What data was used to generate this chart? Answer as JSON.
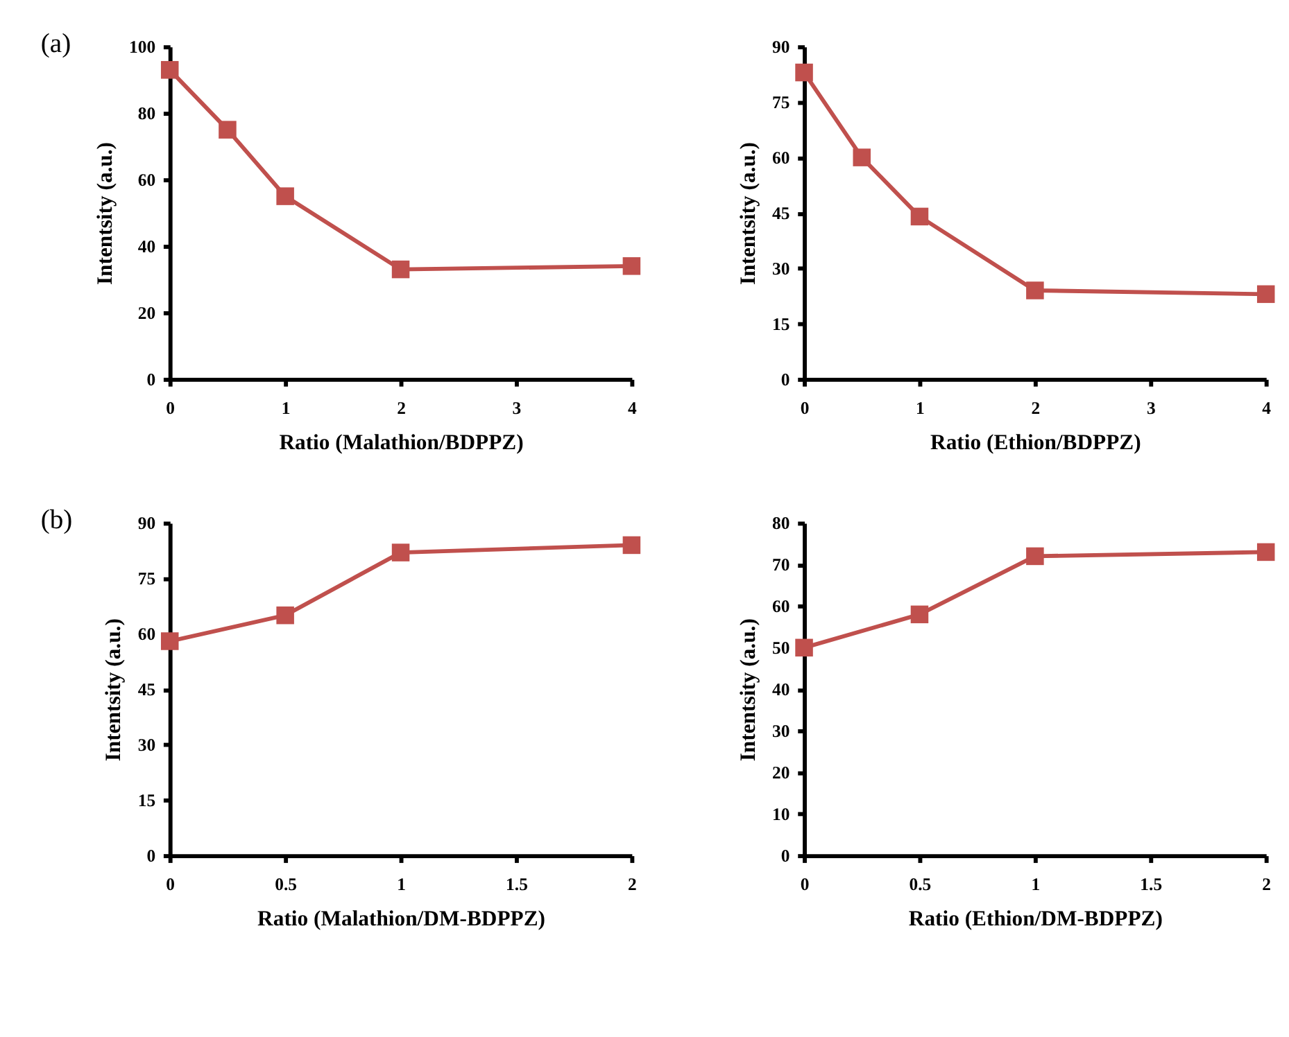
{
  "chart_data": [
    {
      "type": "line",
      "x": [
        0,
        0.5,
        1,
        2,
        4
      ],
      "series": [
        {
          "color": "#c0504d",
          "values": [
            93,
            75,
            55,
            33,
            34
          ]
        }
      ],
      "xlabel": "Ratio (Malathion/BDPPZ)",
      "ylabel": "Intentsity (a.u.)",
      "xlim": [
        0,
        4
      ],
      "xticks": [
        0,
        1,
        2,
        3,
        4
      ],
      "ylim": [
        0,
        100
      ],
      "yticks": [
        0,
        20,
        40,
        60,
        80,
        100
      ],
      "marker": "square",
      "grid": false,
      "annotations": [
        "(a)"
      ]
    },
    {
      "type": "line",
      "x": [
        0,
        0.5,
        1,
        2,
        4
      ],
      "series": [
        {
          "color": "#c0504d",
          "values": [
            83,
            60,
            44,
            24,
            23
          ]
        }
      ],
      "xlabel": "Ratio (Ethion/BDPPZ)",
      "ylabel": "Intentsity (a.u.)",
      "xlim": [
        0,
        4
      ],
      "xticks": [
        0,
        1,
        2,
        3,
        4
      ],
      "ylim": [
        0,
        90
      ],
      "yticks": [
        0,
        15,
        30,
        45,
        60,
        75,
        90
      ],
      "marker": "square",
      "grid": false
    },
    {
      "type": "line",
      "x": [
        0,
        0.5,
        1,
        2
      ],
      "series": [
        {
          "color": "#c0504d",
          "values": [
            58,
            65,
            82,
            84
          ]
        }
      ],
      "xlabel": "Ratio (Malathion/DM-BDPPZ)",
      "ylabel": "Intentsity (a.u.)",
      "xlim": [
        0,
        2
      ],
      "xticks": [
        0,
        0.5,
        1,
        1.5,
        2
      ],
      "ylim": [
        0,
        90
      ],
      "yticks": [
        0,
        15,
        30,
        45,
        60,
        75,
        90
      ],
      "marker": "square",
      "grid": false,
      "annotations": [
        "(b)"
      ]
    },
    {
      "type": "line",
      "x": [
        0,
        0.5,
        1,
        2
      ],
      "series": [
        {
          "color": "#c0504d",
          "values": [
            50,
            58,
            72,
            73
          ]
        }
      ],
      "xlabel": "Ratio (Ethion/DM-BDPPZ)",
      "ylabel": "Intentsity (a.u.)",
      "xlim": [
        0,
        2
      ],
      "xticks": [
        0,
        0.5,
        1,
        1.5,
        2
      ],
      "ylim": [
        0,
        80
      ],
      "yticks": [
        0,
        10,
        20,
        30,
        40,
        50,
        60,
        70,
        80
      ],
      "marker": "square",
      "grid": false
    }
  ]
}
